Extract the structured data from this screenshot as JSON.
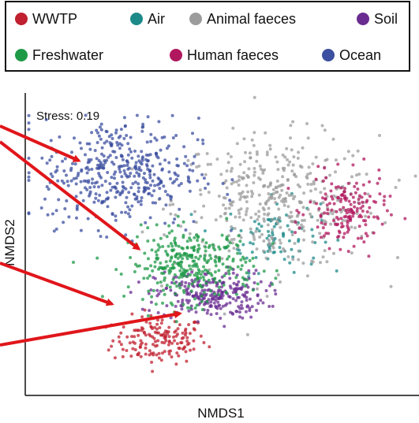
{
  "chart_data": {
    "type": "scatter",
    "xlabel": "NMDS1",
    "ylabel": "NMDS2",
    "annotation": "Stress: 0.19",
    "legend_placement": "top-right",
    "grid": false,
    "xlim": [
      0,
      100
    ],
    "ylim": [
      0,
      100
    ],
    "series": [
      {
        "name": "WWTP",
        "color": "#c0202f",
        "center": [
          34,
          18
        ],
        "spread": [
          6,
          4
        ],
        "count": 160
      },
      {
        "name": "Air",
        "color": "#1d8a8a",
        "center": [
          63,
          53
        ],
        "spread": [
          6,
          6
        ],
        "count": 90
      },
      {
        "name": "Animal faeces",
        "color": "#9c9c9c",
        "center": [
          64,
          64
        ],
        "spread": [
          13,
          11
        ],
        "count": 420
      },
      {
        "name": "Soil",
        "color": "#6a2c91",
        "center": [
          47,
          33
        ],
        "spread": [
          7,
          4
        ],
        "count": 260
      },
      {
        "name": "Freshwater",
        "color": "#1e9a47",
        "center": [
          42,
          43
        ],
        "spread": [
          8,
          6
        ],
        "count": 330
      },
      {
        "name": "Human faeces",
        "color": "#b0175e",
        "center": [
          82,
          61
        ],
        "spread": [
          5,
          6
        ],
        "count": 170
      },
      {
        "name": "Ocean",
        "color": "#3c4fa0",
        "center": [
          24,
          74
        ],
        "spread": [
          10,
          9
        ],
        "count": 430
      }
    ]
  },
  "legend": {
    "row1": [
      "WWTP",
      "Air",
      "Animal faeces",
      "Soil"
    ],
    "row2": [
      "Freshwater",
      "Human faeces",
      "Ocean"
    ]
  },
  "colors": {
    "arrow": "#e0161b",
    "axis": "#111111",
    "legend_border": "#111111"
  }
}
